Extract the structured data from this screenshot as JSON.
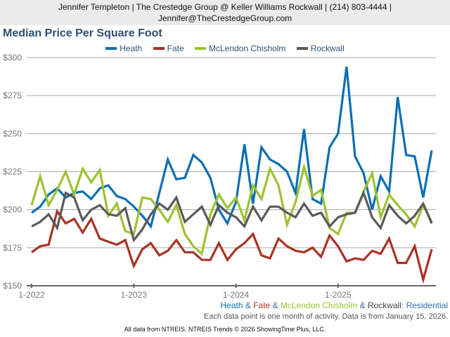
{
  "header": {
    "line1": "Jennifer Templeton | The Crestedge Group @ Keller Williams Rockwall | (214) 803-4444 |",
    "line2": "Jennifer@TheCrestedgeGroup.com"
  },
  "caption": {
    "parts": [
      {
        "text": "Heath",
        "color": "#0b6fb3"
      },
      {
        "text": " & ",
        "color": "#2e6fa6"
      },
      {
        "text": "Fate",
        "color": "#a83324"
      },
      {
        "text": " & ",
        "color": "#2e6fa6"
      },
      {
        "text": "McLendon Chisholm",
        "color": "#9cc230"
      },
      {
        "text": " & ",
        "color": "#2e6fa6"
      },
      {
        "text": "Rockwall",
        "color": "#444444"
      },
      {
        "text": ": Residential",
        "color": "#2e6fa6"
      }
    ]
  },
  "note": "Each data point is one month of activity. Data is from January 15, 2026.",
  "footer": "All data from NTREIS. NTREIS Trends © 2026 ShowingTime Plus, LLC.",
  "chart_data": {
    "type": "line",
    "title": "Median Price Per Square Foot",
    "xlabel": "",
    "ylabel": "",
    "ylim": [
      150,
      300
    ],
    "yticks": [
      150,
      175,
      200,
      225,
      250,
      275,
      300
    ],
    "ytick_labels": [
      "$150",
      "$175",
      "$200",
      "$225",
      "$250",
      "$275",
      "$300"
    ],
    "xticks": [
      {
        "index": 0,
        "label": "1-2022"
      },
      {
        "index": 12,
        "label": "1-2023"
      },
      {
        "index": 24,
        "label": "1-2024"
      },
      {
        "index": 36,
        "label": "1-2025"
      }
    ],
    "x_count": 48,
    "grid": true,
    "legend": "top-center",
    "series": [
      {
        "name": "Heath",
        "color": "#0b6fb3",
        "values": [
          198,
          202,
          210,
          214,
          208,
          211,
          212,
          207,
          214,
          216,
          209,
          207,
          202,
          196,
          189,
          211,
          233,
          220,
          221,
          236,
          231,
          221,
          200,
          191,
          205,
          243,
          204,
          241,
          233,
          230,
          225,
          211,
          253,
          207,
          204,
          241,
          250,
          294,
          235,
          224,
          200,
          222,
          212,
          274,
          236,
          235,
          208,
          239
        ]
      },
      {
        "name": "Fate",
        "color": "#a83324",
        "values": [
          172,
          176,
          177,
          199,
          191,
          194,
          185,
          194,
          181,
          179,
          177,
          180,
          163,
          174,
          178,
          170,
          173,
          180,
          172,
          172,
          167,
          167,
          178,
          167,
          174,
          178,
          184,
          170,
          168,
          181,
          176,
          173,
          172,
          175,
          169,
          183,
          176,
          166,
          168,
          167,
          173,
          171,
          181,
          165,
          165,
          176,
          154,
          174
        ]
      },
      {
        "name": "McLendon Chisholm",
        "color": "#9cc230",
        "values": [
          203,
          222,
          203,
          213,
          225,
          210,
          227,
          218,
          226,
          196,
          204,
          186,
          184,
          208,
          207,
          200,
          192,
          203,
          184,
          176,
          171,
          197,
          210,
          201,
          208,
          193,
          216,
          207,
          227,
          216,
          190,
          205,
          228,
          209,
          213,
          188,
          184,
          198,
          198,
          212,
          224,
          195,
          210,
          203,
          197,
          189,
          203,
          192
        ]
      },
      {
        "name": "Rockwall",
        "color": "#5a5a5a",
        "values": [
          189,
          192,
          197,
          188,
          211,
          208,
          193,
          200,
          203,
          197,
          196,
          201,
          180,
          187,
          197,
          204,
          200,
          208,
          192,
          197,
          202,
          190,
          203,
          198,
          195,
          189,
          202,
          193,
          202,
          202,
          198,
          195,
          204,
          196,
          198,
          189,
          195,
          197,
          198,
          211,
          195,
          188,
          203,
          196,
          191,
          196,
          204,
          191
        ]
      }
    ]
  }
}
